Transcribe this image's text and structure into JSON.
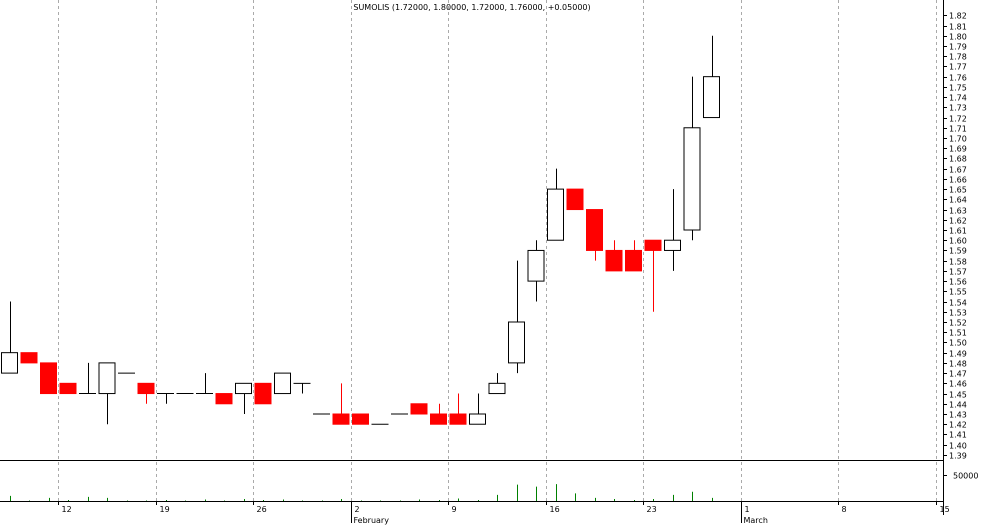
{
  "chart_data": {
    "type": "candlestick",
    "title": "SUMOLIS (1.72000, 1.80000, 1.72000, 1.76000, +0.05000)",
    "colors": {
      "up": "#ffffff",
      "down": "#ff0000",
      "flat": "#000000",
      "volume": "#008000",
      "grid": "#aaaaaa",
      "frame": "#000000"
    },
    "y_range": [
      1.385,
      1.835
    ],
    "y_ticks": [
      "1.82",
      "1.81",
      "1.80",
      "1.79",
      "1.78",
      "1.77",
      "1.76",
      "1.75",
      "1.74",
      "1.73",
      "1.72",
      "1.71",
      "1.70",
      "1.69",
      "1.68",
      "1.67",
      "1.66",
      "1.65",
      "1.64",
      "1.63",
      "1.62",
      "1.61",
      "1.60",
      "1.59",
      "1.58",
      "1.57",
      "1.56",
      "1.55",
      "1.54",
      "1.53",
      "1.52",
      "1.51",
      "1.50",
      "1.49",
      "1.48",
      "1.47",
      "1.46",
      "1.45",
      "1.44",
      "1.43",
      "1.42",
      "1.41",
      "1.40",
      "1.39"
    ],
    "volume_range": [
      0,
      80000
    ],
    "volume_tick": "50000",
    "x_day_labels": [
      {
        "label": "12",
        "index": 3
      },
      {
        "label": "19",
        "index": 8
      },
      {
        "label": "26",
        "index": 13
      },
      {
        "label": "2",
        "index": 18
      },
      {
        "label": "9",
        "index": 23
      },
      {
        "label": "16",
        "index": 28
      },
      {
        "label": "23",
        "index": 33
      },
      {
        "label": "1",
        "index": 38
      },
      {
        "label": "8",
        "index": 43
      },
      {
        "label": "15",
        "index": 48
      }
    ],
    "x_month_labels": [
      {
        "label": "February",
        "index": 18
      },
      {
        "label": "March",
        "index": 38
      }
    ],
    "candles": [
      {
        "open": 1.47,
        "high": 1.54,
        "low": 1.47,
        "close": 1.49,
        "volume": 10000
      },
      {
        "open": 1.49,
        "high": 1.49,
        "low": 1.48,
        "close": 1.48,
        "volume": 1000
      },
      {
        "open": 1.48,
        "high": 1.48,
        "low": 1.45,
        "close": 1.45,
        "volume": 6000
      },
      {
        "open": 1.46,
        "high": 1.46,
        "low": 1.45,
        "close": 1.45,
        "volume": 2000
      },
      {
        "open": 1.45,
        "high": 1.48,
        "low": 1.45,
        "close": 1.45,
        "volume": 8000
      },
      {
        "open": 1.45,
        "high": 1.48,
        "low": 1.42,
        "close": 1.48,
        "volume": 6000
      },
      {
        "open": 1.47,
        "high": 1.47,
        "low": 1.47,
        "close": 1.47,
        "volume": 1000
      },
      {
        "open": 1.46,
        "high": 1.46,
        "low": 1.44,
        "close": 1.45,
        "volume": 1000
      },
      {
        "open": 1.45,
        "high": 1.45,
        "low": 1.44,
        "close": 1.45,
        "volume": 2000
      },
      {
        "open": 1.45,
        "high": 1.45,
        "low": 1.45,
        "close": 1.45,
        "volume": 1000
      },
      {
        "open": 1.45,
        "high": 1.47,
        "low": 1.45,
        "close": 1.45,
        "volume": 3000
      },
      {
        "open": 1.45,
        "high": 1.45,
        "low": 1.44,
        "close": 1.44,
        "volume": 1000
      },
      {
        "open": 1.45,
        "high": 1.46,
        "low": 1.43,
        "close": 1.46,
        "volume": 4000
      },
      {
        "open": 1.46,
        "high": 1.46,
        "low": 1.44,
        "close": 1.44,
        "volume": 2000
      },
      {
        "open": 1.45,
        "high": 1.47,
        "low": 1.45,
        "close": 1.47,
        "volume": 3000
      },
      {
        "open": 1.46,
        "high": 1.46,
        "low": 1.45,
        "close": 1.46,
        "volume": 1000
      },
      {
        "open": 1.43,
        "high": 1.43,
        "low": 1.43,
        "close": 1.43,
        "volume": 1000
      },
      {
        "open": 1.43,
        "high": 1.46,
        "low": 1.42,
        "close": 1.42,
        "volume": 4000
      },
      {
        "open": 1.43,
        "high": 1.43,
        "low": 1.42,
        "close": 1.42,
        "volume": 1000
      },
      {
        "open": 1.42,
        "high": 1.42,
        "low": 1.42,
        "close": 1.42,
        "volume": 1000
      },
      {
        "open": 1.43,
        "high": 1.43,
        "low": 1.43,
        "close": 1.43,
        "volume": 1000
      },
      {
        "open": 1.44,
        "high": 1.44,
        "low": 1.43,
        "close": 1.43,
        "volume": 3000
      },
      {
        "open": 1.43,
        "high": 1.44,
        "low": 1.42,
        "close": 1.42,
        "volume": 2000
      },
      {
        "open": 1.43,
        "high": 1.45,
        "low": 1.42,
        "close": 1.42,
        "volume": 5000
      },
      {
        "open": 1.42,
        "high": 1.45,
        "low": 1.42,
        "close": 1.43,
        "volume": 2000
      },
      {
        "open": 1.45,
        "high": 1.47,
        "low": 1.45,
        "close": 1.46,
        "volume": 12000
      },
      {
        "open": 1.48,
        "high": 1.58,
        "low": 1.47,
        "close": 1.52,
        "volume": 32000
      },
      {
        "open": 1.56,
        "high": 1.6,
        "low": 1.54,
        "close": 1.59,
        "volume": 28000
      },
      {
        "open": 1.6,
        "high": 1.67,
        "low": 1.6,
        "close": 1.65,
        "volume": 33000
      },
      {
        "open": 1.65,
        "high": 1.65,
        "low": 1.63,
        "close": 1.63,
        "volume": 15000
      },
      {
        "open": 1.63,
        "high": 1.63,
        "low": 1.58,
        "close": 1.59,
        "volume": 6000
      },
      {
        "open": 1.59,
        "high": 1.6,
        "low": 1.57,
        "close": 1.57,
        "volume": 4000
      },
      {
        "open": 1.59,
        "high": 1.6,
        "low": 1.57,
        "close": 1.57,
        "volume": 2000
      },
      {
        "open": 1.6,
        "high": 1.6,
        "low": 1.53,
        "close": 1.59,
        "volume": 4000
      },
      {
        "open": 1.59,
        "high": 1.65,
        "low": 1.57,
        "close": 1.6,
        "volume": 12000
      },
      {
        "open": 1.61,
        "high": 1.76,
        "low": 1.6,
        "close": 1.71,
        "volume": 18000
      },
      {
        "open": 1.72,
        "high": 1.8,
        "low": 1.72,
        "close": 1.76,
        "volume": 6000
      }
    ]
  }
}
